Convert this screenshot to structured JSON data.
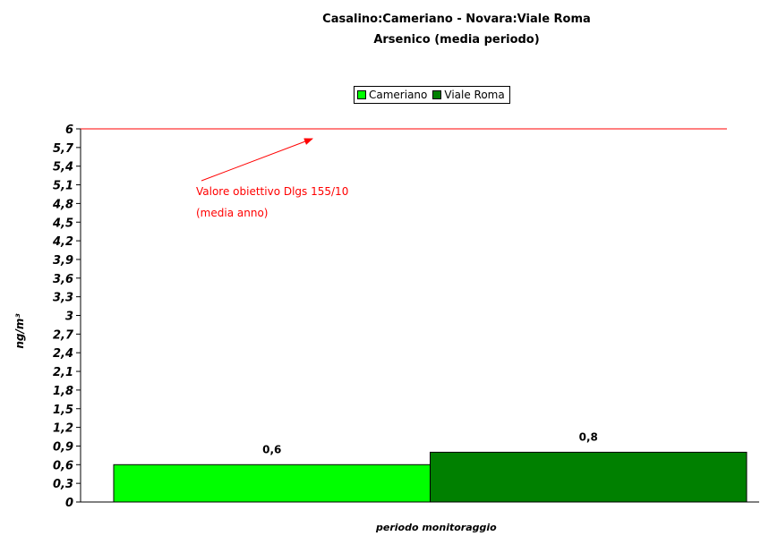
{
  "chart_data": {
    "type": "bar",
    "title": "Casalino:Cameriano - Novara:Viale Roma",
    "subtitle": "Arsenico (media periodo)",
    "xlabel": "periodo monitoraggio",
    "ylabel": "ng/m³",
    "ylim": [
      0,
      6
    ],
    "yticks": [
      "0",
      "0,3",
      "0,6",
      "0,9",
      "1,2",
      "1,5",
      "1,8",
      "2,1",
      "2,4",
      "2,7",
      "3",
      "3,3",
      "3,6",
      "3,9",
      "4,2",
      "4,5",
      "4,8",
      "5,1",
      "5,4",
      "5,7",
      "6"
    ],
    "grid": false,
    "legend_position": "top-center",
    "series": [
      {
        "name": "Cameriano",
        "values": [
          0.6
        ],
        "label": "0,6",
        "color": "#00ff00"
      },
      {
        "name": "Viale Roma",
        "values": [
          0.8
        ],
        "label": "0,8",
        "color": "#008000"
      }
    ],
    "reference_line": {
      "value": 6,
      "color": "#ff0000"
    },
    "annotation": {
      "line1": "Valore obiettivo Dlgs 155/10",
      "line2": "(media anno)",
      "color": "#ff0000"
    }
  }
}
